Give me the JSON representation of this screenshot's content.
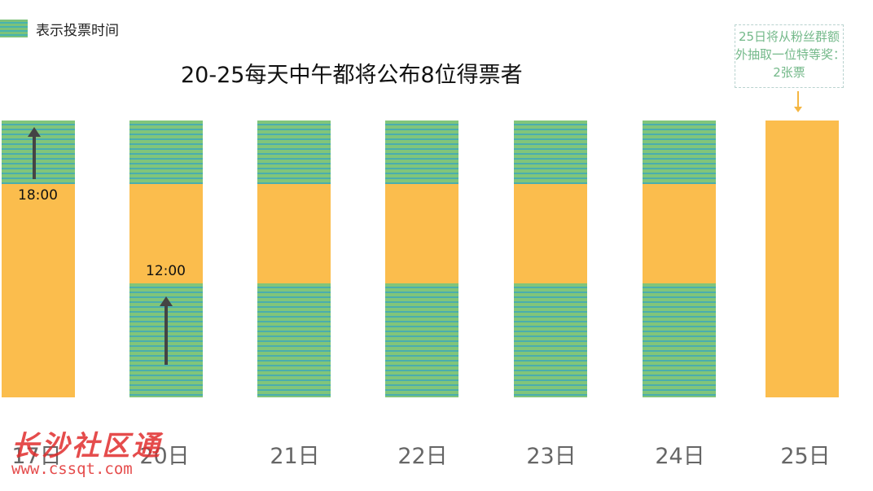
{
  "legend": {
    "label": "表示投票时间"
  },
  "title": "20-25每天中午都将公布8位得票者",
  "note": {
    "lines": [
      "25日将从粉丝群额",
      "外抽取一位特等奖：",
      "2张票"
    ]
  },
  "time_labels": {
    "day17": "18:00",
    "day20": "12:00"
  },
  "days": [
    "17日",
    "20日",
    "21日",
    "22日",
    "23日",
    "24日",
    "25日"
  ],
  "colors": {
    "bar": "#fbbd4d",
    "stripe_green": "#81c57a",
    "stripe_teal": "#4aaeae",
    "note_text": "#74b98a"
  },
  "watermark": {
    "main": "长沙社区通",
    "sub": "www.cssqt.com"
  }
}
